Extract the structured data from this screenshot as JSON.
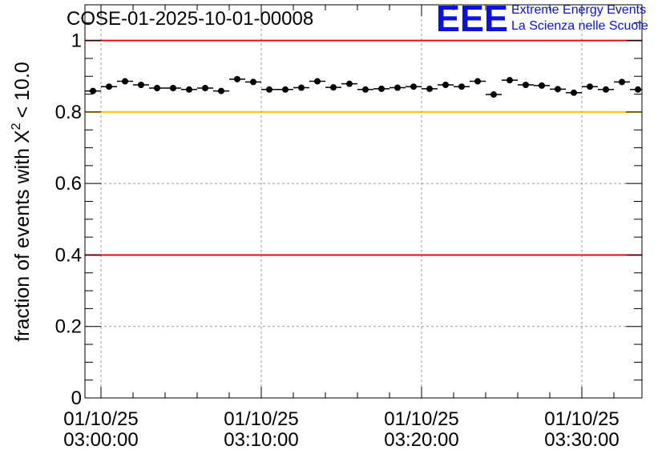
{
  "header": {
    "title": "COSE-01-2025-10-01-00008",
    "logo_mark": "EEE",
    "logo_line1": "Extreme Energy Events",
    "logo_line2": "La Scienza nelle Scuole"
  },
  "colors": {
    "logo": "#0a10e6",
    "upper_line": "#e01010",
    "warn_line": "#ffbf00",
    "lower_line": "#e01010",
    "grid": "#9a9a9a",
    "marker": "#000000"
  },
  "chart_data": {
    "type": "scatter",
    "title": "COSE-01-2025-10-01-00008",
    "ylabel": "fraction of events with",
    "ylabel_symbol": "X",
    "ylabel_sup": "2",
    "ylabel_suffix": "< 10.0",
    "xlabel": "",
    "x_unit": "minutes after 03:00:00",
    "xlim": [
      -1.0,
      33.75
    ],
    "ylim": [
      0,
      1.1
    ],
    "y_ticks": [
      0,
      0.2,
      0.4,
      0.6,
      0.8,
      1
    ],
    "y_tick_labels": [
      "0",
      "0.2",
      "0.4",
      "0.6",
      "0.8",
      "1"
    ],
    "x_ticks": [
      0,
      10,
      20,
      30
    ],
    "x_tick_labels": [
      {
        "date": "01/10/25",
        "time": "03:00:00"
      },
      {
        "date": "01/10/25",
        "time": "03:10:00"
      },
      {
        "date": "01/10/25",
        "time": "03:20:00"
      },
      {
        "date": "01/10/25",
        "time": "03:30:00"
      }
    ],
    "grid": true,
    "bin_width": 1,
    "reference_lines": [
      {
        "name": "upper-limit",
        "y": 1.0,
        "color": "#e01010"
      },
      {
        "name": "warning-limit",
        "y": 0.8,
        "color": "#ffbf00"
      },
      {
        "name": "lower-limit",
        "y": 0.4,
        "color": "#e01010"
      }
    ],
    "series": [
      {
        "name": "fraction",
        "x": [
          -0.5,
          0.5,
          1.5,
          2.5,
          3.5,
          4.5,
          5.5,
          6.5,
          7.5,
          8.5,
          9.5,
          10.5,
          11.5,
          12.5,
          13.5,
          14.5,
          15.5,
          16.5,
          17.5,
          18.5,
          19.5,
          20.5,
          21.5,
          22.5,
          23.5,
          24.5,
          25.5,
          26.5,
          27.5,
          28.5,
          29.5,
          30.5,
          31.5,
          32.5,
          33.5
        ],
        "values": [
          0.859,
          0.871,
          0.886,
          0.876,
          0.867,
          0.867,
          0.863,
          0.867,
          0.859,
          0.892,
          0.884,
          0.863,
          0.863,
          0.868,
          0.886,
          0.869,
          0.879,
          0.863,
          0.865,
          0.868,
          0.871,
          0.865,
          0.876,
          0.871,
          0.886,
          0.849,
          0.889,
          0.876,
          0.874,
          0.864,
          0.854,
          0.871,
          0.863,
          0.884,
          0.863
        ]
      }
    ]
  }
}
